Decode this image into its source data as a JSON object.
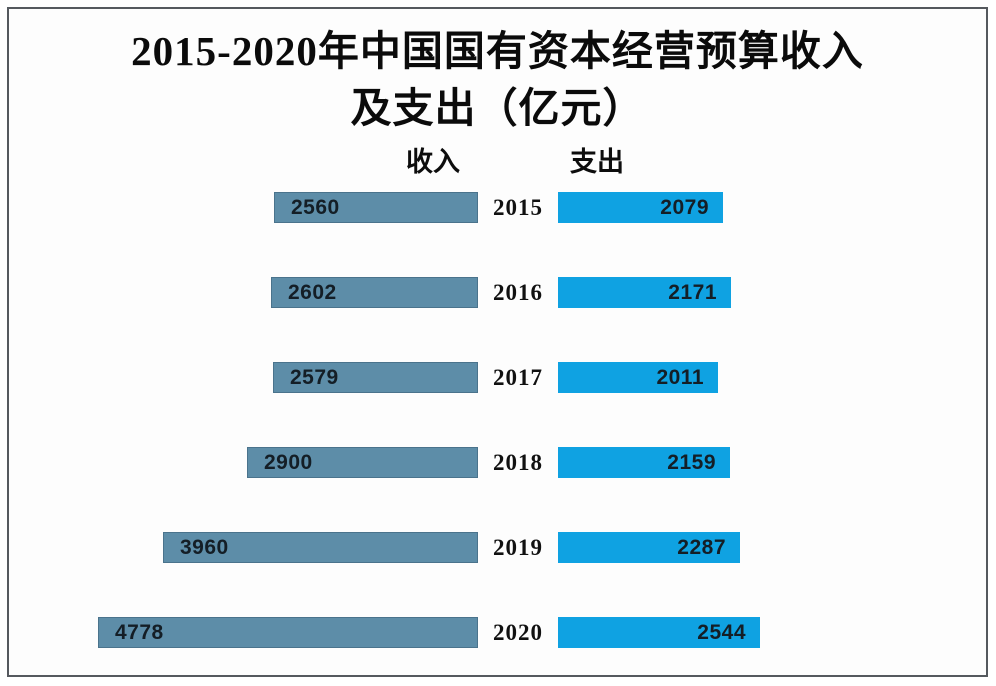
{
  "title": {
    "line1": "2015-2020年中国国有资本经营预算收入",
    "line2": "及支出（亿元）",
    "full": "2015-2020年中国国有资本经营预算收入及支出（亿元）"
  },
  "columns": {
    "income_label": "收入",
    "expenditure_label": "支出"
  },
  "colors": {
    "income_bar": "#5D8DA8",
    "expenditure_bar": "#0FA2E2",
    "frame_border": "#55595e",
    "background": "#fdfdfd",
    "value_text": "#141e26",
    "title_text": "#0b0b0b"
  },
  "chart_data": {
    "type": "bar",
    "orientation": "horizontal-diverging",
    "title": "2015-2020年中国国有资本经营预算收入及支出（亿元）",
    "categories": [
      "2015",
      "2016",
      "2017",
      "2018",
      "2019",
      "2020"
    ],
    "series": [
      {
        "name": "收入",
        "values": [
          2560,
          2602,
          2579,
          2900,
          3960,
          4778
        ]
      },
      {
        "name": "支出",
        "values": [
          2079,
          2171,
          2011,
          2159,
          2287,
          2544
        ]
      }
    ],
    "value_axis_max": 4778,
    "unit": "亿元",
    "legend_position": "top",
    "grid": false,
    "value_labels": "inside-bars"
  }
}
